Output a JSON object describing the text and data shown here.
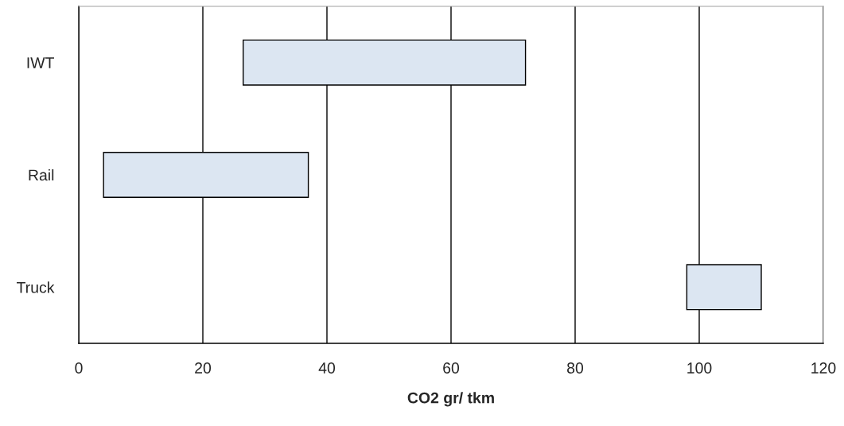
{
  "chart_data": {
    "type": "bar",
    "orientation": "horizontal",
    "xlabel": "CO2 gr/ tkm",
    "categories": [
      "IWT",
      "Rail",
      "Truck"
    ],
    "base": [
      26.5,
      4,
      98
    ],
    "values": [
      45.5,
      33,
      12
    ],
    "color": "#dce6f2",
    "xlim": [
      0,
      120
    ],
    "xticks": [
      0,
      20,
      40,
      60,
      80,
      100,
      120
    ],
    "grid": "x"
  }
}
